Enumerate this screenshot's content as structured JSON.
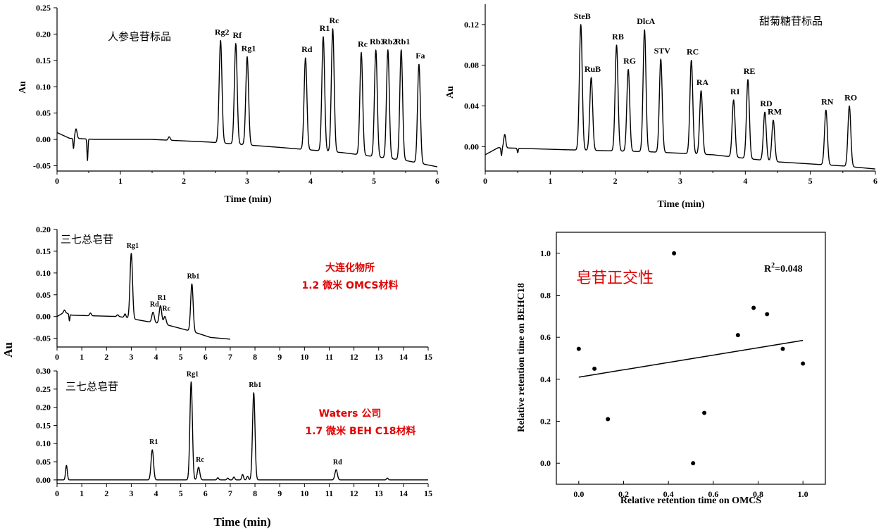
{
  "chart_data": [
    {
      "id": "chart1",
      "type": "line",
      "annotation": "人参皂苷标品",
      "xlabel": "Time (min)",
      "ylabel": "Au",
      "xlim": [
        0,
        6
      ],
      "ylim": [
        -0.06,
        0.25
      ],
      "xticks": [
        0,
        1,
        2,
        3,
        4,
        5,
        6
      ],
      "yticks": [
        -0.05,
        0.0,
        0.05,
        0.1,
        0.15,
        0.2,
        0.25
      ],
      "ytick_labels": [
        "-0.05",
        "0.00",
        "0.05",
        "0.10",
        "0.15",
        "0.20",
        "0.25"
      ],
      "baseline": [
        [
          0,
          0.013
        ],
        [
          0.2,
          0.002
        ],
        [
          0.3,
          0.002
        ],
        [
          0.6,
          0.0
        ],
        [
          1.5,
          0.0
        ],
        [
          2.4,
          -0.005
        ],
        [
          3.5,
          -0.015
        ],
        [
          4.5,
          -0.025
        ],
        [
          5.5,
          -0.04
        ],
        [
          6,
          -0.052
        ]
      ],
      "dips": [
        {
          "x": 0.26,
          "y": -0.018
        },
        {
          "x": 0.48,
          "y": -0.04
        }
      ],
      "bumps": [
        {
          "x": 0.3,
          "y": 0.02
        },
        {
          "x": 1.77,
          "y": 0.005
        }
      ],
      "peaks": [
        {
          "label": "Rg2",
          "x": 2.58,
          "y": 0.188
        },
        {
          "label": "Rf",
          "x": 2.82,
          "y": 0.182
        },
        {
          "label": "Rg1",
          "x": 3.0,
          "y": 0.157
        },
        {
          "label": "Rd",
          "x": 3.92,
          "y": 0.155
        },
        {
          "label": "R1",
          "x": 4.2,
          "y": 0.195
        },
        {
          "label": "Rc",
          "x": 4.35,
          "y": 0.21
        },
        {
          "label": "Rc",
          "x": 4.8,
          "y": 0.165
        },
        {
          "label": "Rb3",
          "x": 5.03,
          "y": 0.17
        },
        {
          "label": "Rb2",
          "x": 5.22,
          "y": 0.17
        },
        {
          "label": "Rb1",
          "x": 5.43,
          "y": 0.17
        },
        {
          "label": "Fa",
          "x": 5.71,
          "y": 0.143
        }
      ]
    },
    {
      "id": "chart2",
      "type": "line",
      "annotation": "甜菊糖苷标品",
      "xlabel": "Time (min)",
      "ylabel": "Au",
      "xlim": [
        0,
        6
      ],
      "ylim": [
        -0.024,
        0.14
      ],
      "xticks": [
        0,
        1,
        2,
        3,
        4,
        5,
        6
      ],
      "yticks": [
        0.0,
        0.04,
        0.08,
        0.12
      ],
      "ytick_labels": [
        "0.00",
        "0.04",
        "0.08",
        "0.12"
      ],
      "baseline": [
        [
          0,
          -0.008
        ],
        [
          0.2,
          -0.001
        ],
        [
          1.2,
          -0.003
        ],
        [
          2.5,
          -0.005
        ],
        [
          3.5,
          -0.008
        ],
        [
          4.5,
          -0.015
        ],
        [
          5.5,
          -0.019
        ],
        [
          6,
          -0.022
        ]
      ],
      "dips": [
        {
          "x": 0.25,
          "y": -0.009
        },
        {
          "x": 0.5,
          "y": -0.006
        }
      ],
      "bumps": [
        {
          "x": 0.3,
          "y": 0.012
        }
      ],
      "peaks": [
        {
          "label": "SteB",
          "x": 1.47,
          "y": 0.12
        },
        {
          "label": "RuB",
          "x": 1.63,
          "y": 0.068
        },
        {
          "label": "RB",
          "x": 2.02,
          "y": 0.1
        },
        {
          "label": "RG",
          "x": 2.2,
          "y": 0.076
        },
        {
          "label": "DlcA",
          "x": 2.45,
          "y": 0.115
        },
        {
          "label": "STV",
          "x": 2.7,
          "y": 0.086
        },
        {
          "label": "RC",
          "x": 3.17,
          "y": 0.085
        },
        {
          "label": "RA",
          "x": 3.32,
          "y": 0.055
        },
        {
          "label": "RI",
          "x": 3.82,
          "y": 0.046
        },
        {
          "label": "RE",
          "x": 4.04,
          "y": 0.066
        },
        {
          "label": "RD",
          "x": 4.3,
          "y": 0.034
        },
        {
          "label": "RM",
          "x": 4.43,
          "y": 0.026
        },
        {
          "label": "RN",
          "x": 5.24,
          "y": 0.036
        },
        {
          "label": "RO",
          "x": 5.6,
          "y": 0.04
        }
      ]
    },
    {
      "id": "chart3",
      "type": "line",
      "annotation": "三七总皂苷",
      "annotation_red": [
        "大连化物所",
        "1.2 微米 OMCS材料"
      ],
      "ylabel": "Au",
      "xlim": [
        0,
        15
      ],
      "ylim": [
        -0.07,
        0.2
      ],
      "xticks": [
        0,
        1,
        2,
        3,
        4,
        5,
        6,
        7,
        8,
        9,
        10,
        11,
        12,
        13,
        14,
        15
      ],
      "yticks": [
        -0.05,
        0.0,
        0.05,
        0.1,
        0.15,
        0.2
      ],
      "ytick_labels": [
        "-0.05",
        "0.00",
        "0.05",
        "0.10",
        "0.15",
        "0.20"
      ],
      "trace_end": 7.0,
      "baseline": [
        [
          0,
          0.0
        ],
        [
          0.3,
          0.01
        ],
        [
          0.6,
          0.003
        ],
        [
          2.5,
          0.0
        ],
        [
          3.5,
          -0.01
        ],
        [
          4.5,
          -0.02
        ],
        [
          5.5,
          -0.035
        ],
        [
          6.2,
          -0.048
        ],
        [
          7,
          -0.052
        ]
      ],
      "dips": [
        {
          "x": 0.5,
          "y": -0.01
        }
      ],
      "bumps": [
        {
          "x": 0.3,
          "y": 0.015
        },
        {
          "x": 1.35,
          "y": 0.008
        },
        {
          "x": 2.45,
          "y": 0.004
        },
        {
          "x": 2.75,
          "y": 0.006
        }
      ],
      "peaks": [
        {
          "label": "Rg1",
          "x": 3.0,
          "y": 0.145
        },
        {
          "label": "Rd",
          "x": 3.88,
          "y": 0.01
        },
        {
          "label": "R1",
          "x": 4.18,
          "y": 0.025
        },
        {
          "label": "Rc",
          "x": 4.36,
          "y": 0.0
        },
        {
          "label": "Rb1",
          "x": 5.45,
          "y": 0.075
        }
      ]
    },
    {
      "id": "chart4",
      "type": "line",
      "annotation": "三七总皂苷",
      "annotation_red": [
        "Waters 公司",
        "1.7 微米 BEH C18材料"
      ],
      "xlabel": "Time (min)",
      "ylabel": "Au",
      "xlim": [
        0,
        15
      ],
      "ylim": [
        -0.01,
        0.3
      ],
      "xticks": [
        0,
        1,
        2,
        3,
        4,
        5,
        6,
        7,
        8,
        9,
        10,
        11,
        12,
        13,
        14,
        15
      ],
      "yticks": [
        0.0,
        0.05,
        0.1,
        0.15,
        0.2,
        0.25,
        0.3
      ],
      "ytick_labels": [
        "0.00",
        "0.05",
        "0.10",
        "0.15",
        "0.20",
        "0.25",
        "0.30"
      ],
      "baseline": [
        [
          0,
          0.0
        ],
        [
          0.3,
          0.0
        ],
        [
          15,
          0.0
        ]
      ],
      "dips": [],
      "bumps": [
        {
          "x": 0.38,
          "y": 0.04
        },
        {
          "x": 6.5,
          "y": 0.006
        },
        {
          "x": 6.9,
          "y": 0.005
        },
        {
          "x": 7.15,
          "y": 0.008
        },
        {
          "x": 7.5,
          "y": 0.015
        },
        {
          "x": 7.7,
          "y": 0.01
        },
        {
          "x": 13.35,
          "y": 0.005
        }
      ],
      "peaks": [
        {
          "label": "R1",
          "x": 3.85,
          "y": 0.083
        },
        {
          "label": "Rg1",
          "x": 5.42,
          "y": 0.27
        },
        {
          "label": "Rc",
          "x": 5.72,
          "y": 0.035
        },
        {
          "label": "Rb1",
          "x": 7.95,
          "y": 0.24
        },
        {
          "label": "Rd",
          "x": 11.28,
          "y": 0.028
        }
      ]
    },
    {
      "id": "chart5",
      "type": "scatter",
      "title": "皂苷正交性",
      "r2_base": "R",
      "r2_sup": "2",
      "r2_tail": "=0.048",
      "xlabel": "Relative retention time on OMCS",
      "ylabel": "Relative retention time on BEHC18",
      "xlim": [
        -0.1,
        1.1
      ],
      "ylim": [
        -0.1,
        1.1
      ],
      "xticks": [
        0.0,
        0.2,
        0.4,
        0.6,
        0.8,
        1.0
      ],
      "yticks": [
        0.0,
        0.2,
        0.4,
        0.6,
        0.8,
        1.0
      ],
      "xtick_labels": [
        "0.0",
        "0.2",
        "0.4",
        "0.6",
        "0.8",
        "1.0"
      ],
      "ytick_labels": [
        "0.0",
        "0.2",
        "0.4",
        "0.6",
        "0.8",
        "1.0"
      ],
      "points": [
        {
          "x": 0.0,
          "y": 0.545
        },
        {
          "x": 0.07,
          "y": 0.45
        },
        {
          "x": 0.13,
          "y": 0.21
        },
        {
          "x": 0.425,
          "y": 1.0
        },
        {
          "x": 0.51,
          "y": 0.0
        },
        {
          "x": 0.56,
          "y": 0.24
        },
        {
          "x": 0.71,
          "y": 0.61
        },
        {
          "x": 0.78,
          "y": 0.74
        },
        {
          "x": 0.84,
          "y": 0.71
        },
        {
          "x": 0.91,
          "y": 0.545
        },
        {
          "x": 1.0,
          "y": 0.475
        }
      ],
      "fit": {
        "x1": 0.0,
        "y1": 0.41,
        "x2": 1.0,
        "y2": 0.585
      }
    }
  ]
}
